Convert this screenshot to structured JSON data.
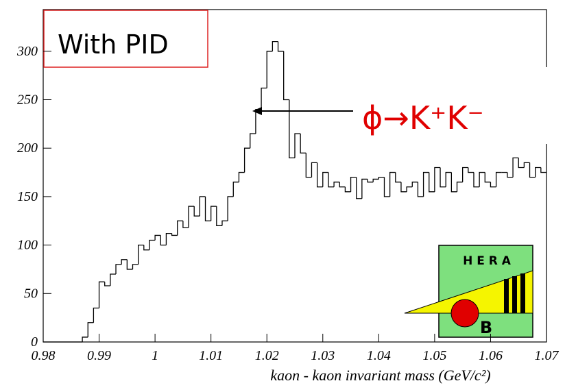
{
  "chart_data": {
    "type": "histogram",
    "xlabel": "kaon - kaon invariant mass (GeV/c²)",
    "legend_box": "With PID",
    "annotation": "ϕ→K⁺K⁻",
    "logo_top": "H E R A",
    "logo_bottom": "B",
    "color": "#000000",
    "xlim": [
      0.98,
      1.07
    ],
    "xticks": [
      0.98,
      0.99,
      1,
      1.01,
      1.02,
      1.03,
      1.04,
      1.05,
      1.06,
      1.07
    ],
    "ylim": [
      0,
      343
    ],
    "yticks": [
      0,
      50,
      100,
      150,
      200,
      250,
      300
    ],
    "bins": [
      0.98,
      0.981,
      0.982,
      0.983,
      0.984,
      0.985,
      0.986,
      0.987,
      0.988,
      0.989,
      0.99,
      0.991,
      0.992,
      0.993,
      0.994,
      0.995,
      0.996,
      0.997,
      0.998,
      0.999,
      1.0,
      1.001,
      1.002,
      1.003,
      1.004,
      1.005,
      1.006,
      1.007,
      1.008,
      1.009,
      1.01,
      1.011,
      1.012,
      1.013,
      1.014,
      1.015,
      1.016,
      1.017,
      1.018,
      1.019,
      1.02,
      1.021,
      1.022,
      1.023,
      1.024,
      1.025,
      1.026,
      1.027,
      1.028,
      1.029,
      1.03,
      1.031,
      1.032,
      1.033,
      1.034,
      1.035,
      1.036,
      1.037,
      1.038,
      1.039,
      1.04,
      1.041,
      1.042,
      1.043,
      1.044,
      1.045,
      1.046,
      1.047,
      1.048,
      1.049,
      1.05,
      1.051,
      1.052,
      1.053,
      1.054,
      1.055,
      1.056,
      1.057,
      1.058,
      1.059,
      1.06,
      1.061,
      1.062,
      1.063,
      1.064,
      1.065,
      1.066,
      1.067,
      1.068,
      1.069,
      1.07
    ],
    "values": [
      0,
      0,
      0,
      0,
      0,
      0,
      0,
      5,
      20,
      35,
      62,
      58,
      70,
      80,
      85,
      75,
      80,
      100,
      95,
      105,
      110,
      100,
      112,
      110,
      125,
      118,
      140,
      130,
      150,
      125,
      140,
      120,
      125,
      150,
      165,
      175,
      200,
      215,
      240,
      262,
      300,
      310,
      300,
      250,
      190,
      215,
      195,
      170,
      185,
      160,
      175,
      160,
      165,
      160,
      155,
      170,
      148,
      168,
      165,
      168,
      170,
      150,
      175,
      165,
      155,
      160,
      165,
      150,
      175,
      155,
      180,
      160,
      175,
      155,
      165,
      180,
      175,
      160,
      175,
      165,
      160,
      175,
      175,
      170,
      190,
      180,
      185,
      170,
      180,
      175
    ]
  }
}
